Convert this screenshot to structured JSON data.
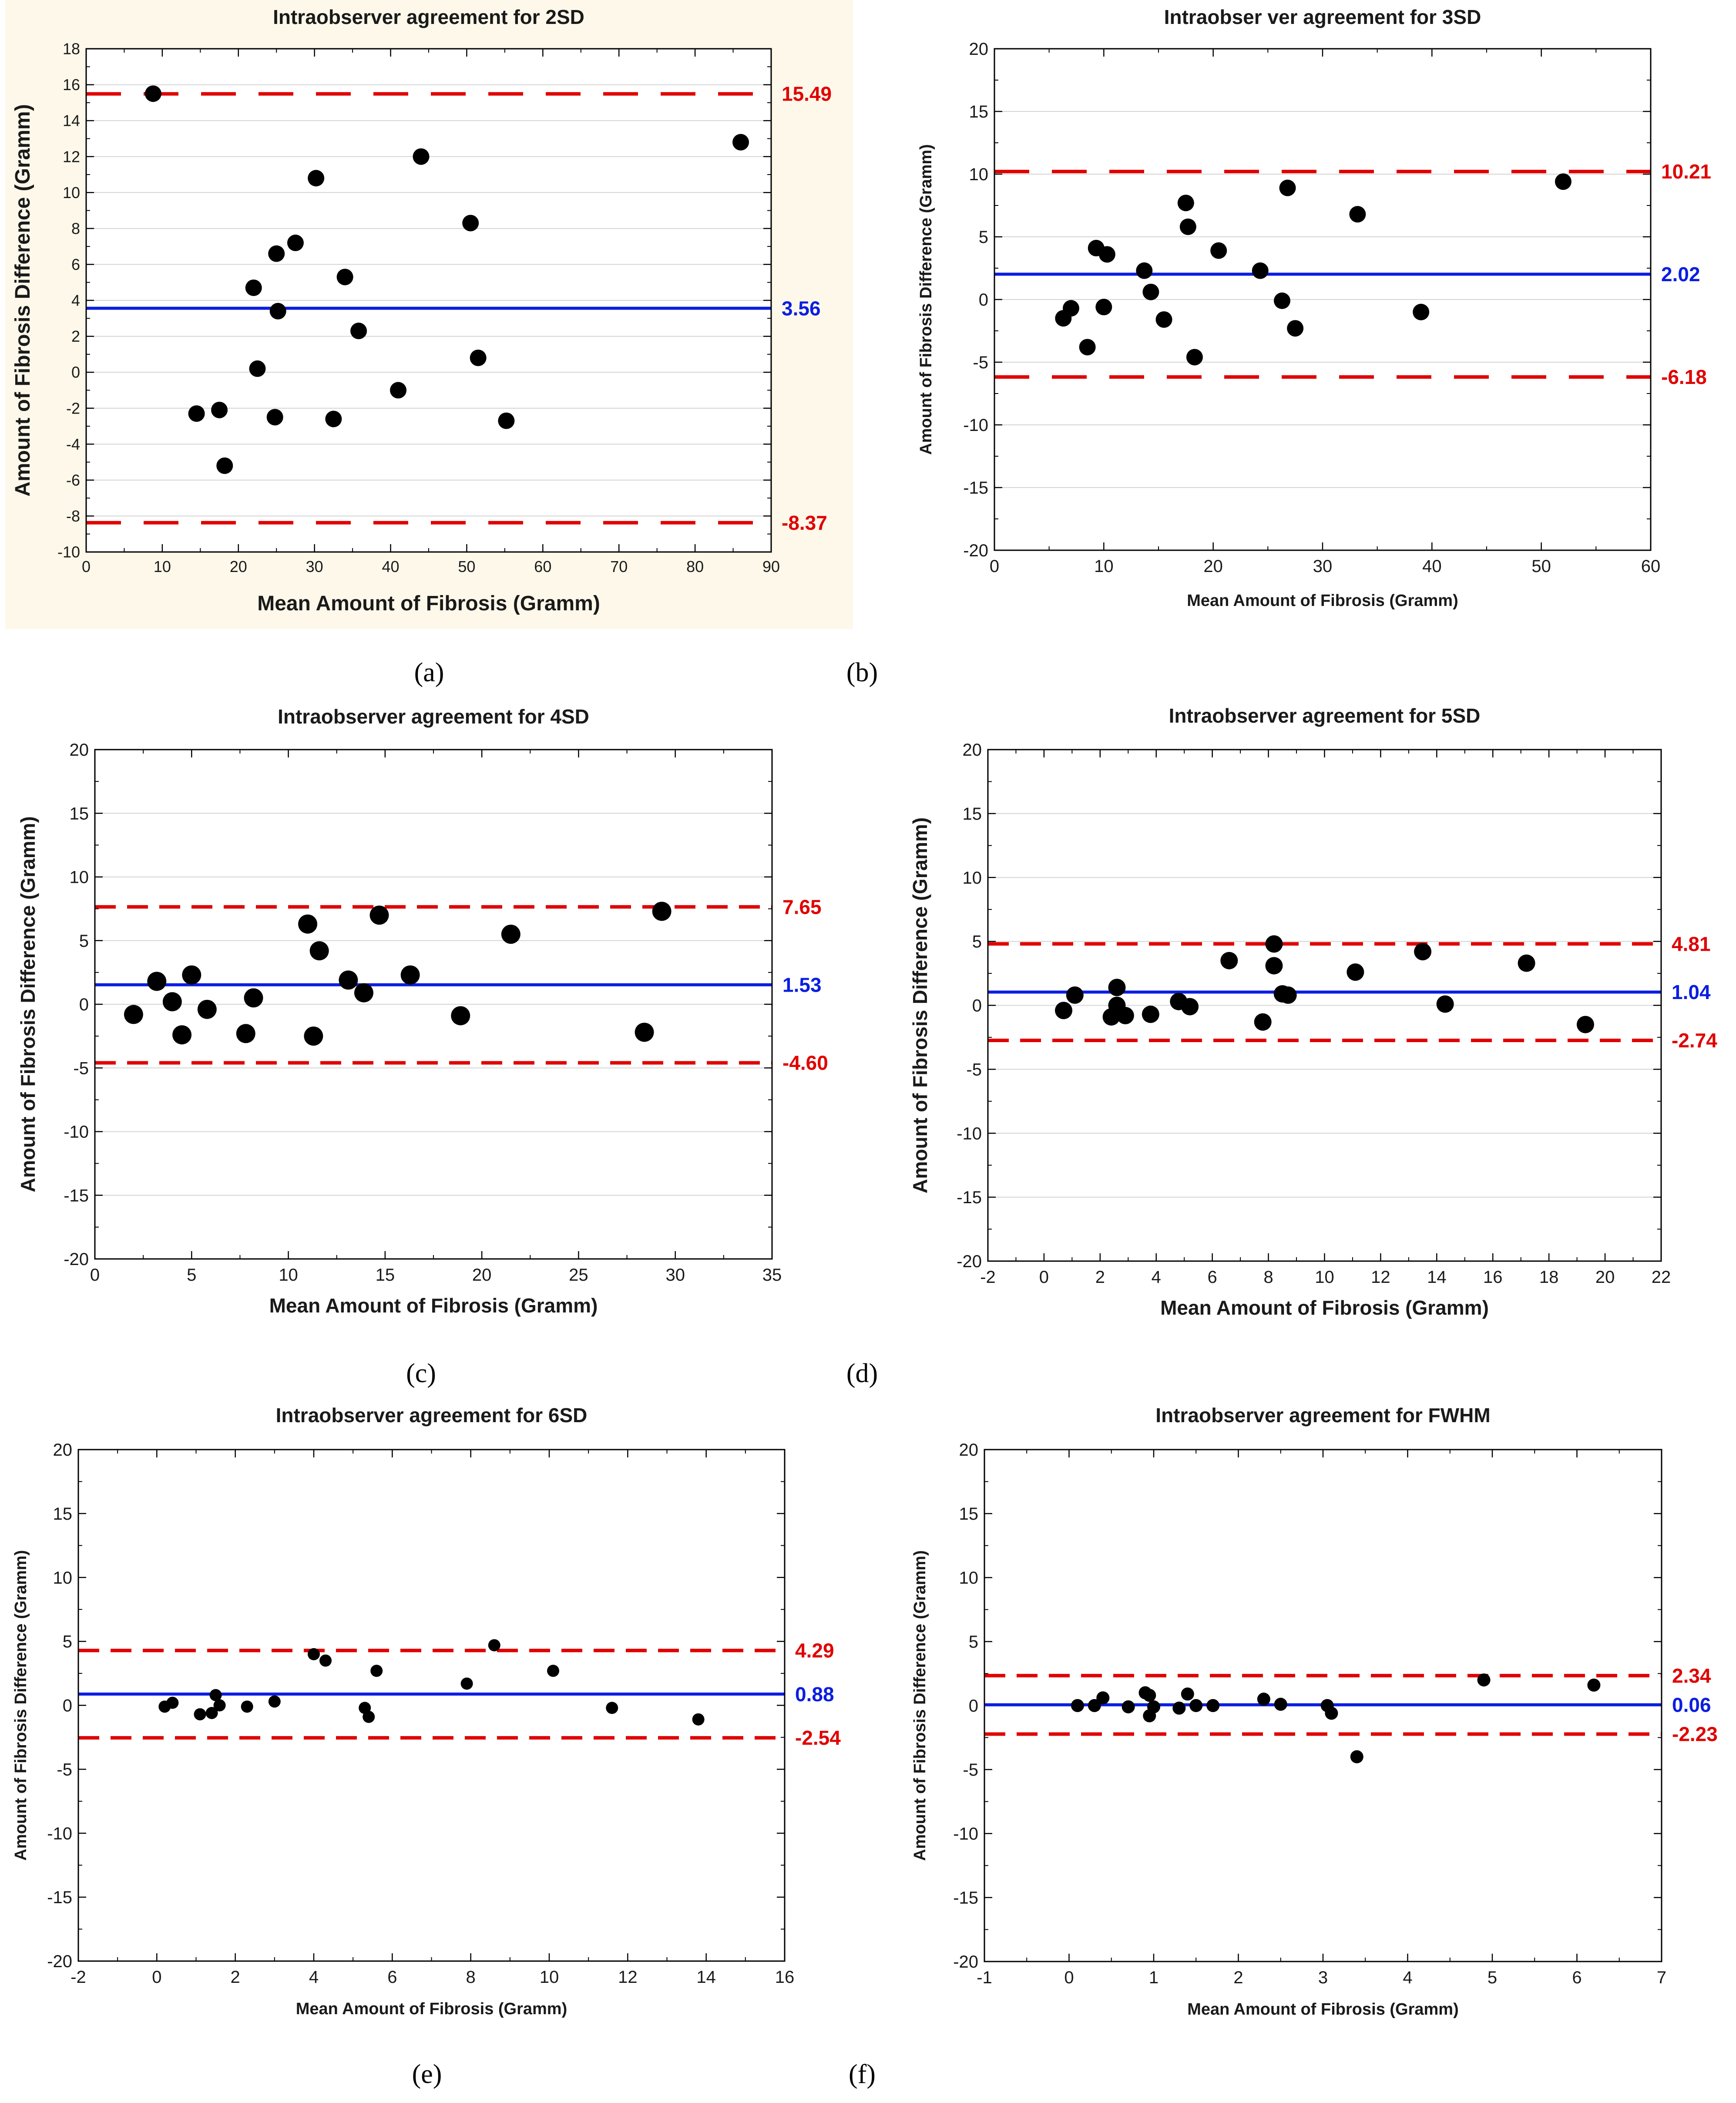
{
  "figure": {
    "panel_background": "#fdf8ea",
    "mean_line_color": "#0a1ee0",
    "limit_line_color": "#e00000",
    "point_color": "#000000"
  },
  "chart_data": [
    {
      "type": "scatter",
      "caption": "(a)",
      "title": "Intraobserver agreement for 2SD",
      "xlabel": "Mean Amount of Fibrosis (Gramm)",
      "ylabel": "Amount of Fibrosis Difference (Gramm)",
      "xlim": [
        0,
        90
      ],
      "xticks": [
        0,
        10,
        20,
        30,
        40,
        50,
        60,
        70,
        80,
        90
      ],
      "ylim": [
        -10,
        18
      ],
      "yticks": [
        -10,
        -8,
        -6,
        -4,
        -2,
        0,
        2,
        4,
        6,
        8,
        10,
        12,
        14,
        16,
        18
      ],
      "grid": true,
      "mean": 3.56,
      "mean_label": "3.56",
      "upper": 15.49,
      "upper_label": "15.49",
      "lower": -8.37,
      "lower_label": "-8.37",
      "dash_style": "long",
      "points": [
        [
          8.8,
          15.5
        ],
        [
          14.5,
          -2.3
        ],
        [
          17.5,
          -2.1
        ],
        [
          18.2,
          -5.2
        ],
        [
          22.0,
          4.7
        ],
        [
          22.5,
          0.2
        ],
        [
          24.8,
          -2.5
        ],
        [
          25.0,
          6.6
        ],
        [
          25.2,
          3.4
        ],
        [
          27.5,
          7.2
        ],
        [
          30.2,
          10.8
        ],
        [
          32.5,
          -2.6
        ],
        [
          34.0,
          5.3
        ],
        [
          35.8,
          2.3
        ],
        [
          41.0,
          -1.0
        ],
        [
          44.0,
          12.0
        ],
        [
          50.5,
          8.3
        ],
        [
          51.5,
          0.8
        ],
        [
          55.2,
          -2.7
        ],
        [
          86.0,
          12.8
        ]
      ]
    },
    {
      "type": "scatter",
      "caption": "(b)",
      "title": "Intraobser ver agreement for 3SD",
      "xlabel": "Mean Amount of Fibrosis (Gramm)",
      "ylabel": "Amount of Fibrosis Difference (Gramm)",
      "xlim": [
        0,
        60
      ],
      "xticks": [
        0,
        10,
        20,
        30,
        40,
        50,
        60
      ],
      "ylim": [
        -20,
        20
      ],
      "yticks": [
        -20,
        -15,
        -10,
        -5,
        0,
        5,
        10,
        15,
        20
      ],
      "grid": true,
      "mean": 2.02,
      "mean_label": "2.02",
      "upper": 10.21,
      "upper_label": "10.21",
      "lower": -6.18,
      "lower_label": "-6.18",
      "dash_style": "long",
      "points": [
        [
          6.3,
          -1.5
        ],
        [
          7.0,
          -0.7
        ],
        [
          8.5,
          -3.8
        ],
        [
          9.3,
          4.1
        ],
        [
          10.0,
          -0.6
        ],
        [
          10.3,
          3.6
        ],
        [
          13.7,
          2.3
        ],
        [
          14.3,
          0.6
        ],
        [
          15.5,
          -1.6
        ],
        [
          17.5,
          7.7
        ],
        [
          17.7,
          5.8
        ],
        [
          18.3,
          -4.6
        ],
        [
          20.5,
          3.9
        ],
        [
          24.3,
          2.3
        ],
        [
          26.3,
          -0.1
        ],
        [
          26.8,
          8.9
        ],
        [
          27.5,
          -2.3
        ],
        [
          33.2,
          6.8
        ],
        [
          39.0,
          -1.0
        ],
        [
          52.0,
          9.4
        ]
      ]
    },
    {
      "type": "scatter",
      "caption": "(c)",
      "title": "Intraobserver agreement for 4SD",
      "xlabel": "Mean Amount of Fibrosis (Gramm)",
      "ylabel": "Amount of Fibrosis Difference (Gramm)",
      "xlim": [
        0,
        35
      ],
      "xticks": [
        0,
        5,
        10,
        15,
        20,
        25,
        30,
        35
      ],
      "ylim": [
        -20,
        20
      ],
      "yticks": [
        -20,
        -15,
        -10,
        -5,
        0,
        5,
        10,
        15,
        20
      ],
      "grid": true,
      "mean": 1.53,
      "mean_label": "1.53",
      "upper": 7.65,
      "upper_label": "7.65",
      "lower": -4.6,
      "lower_label": "-4.60",
      "dash_style": "medium",
      "points": [
        [
          2.0,
          -0.8
        ],
        [
          3.2,
          1.8
        ],
        [
          4.0,
          0.2
        ],
        [
          4.5,
          -2.4
        ],
        [
          5.0,
          2.3
        ],
        [
          5.8,
          -0.4
        ],
        [
          7.8,
          -2.3
        ],
        [
          8.2,
          0.5
        ],
        [
          11.0,
          6.3
        ],
        [
          11.3,
          -2.5
        ],
        [
          11.6,
          4.2
        ],
        [
          13.1,
          1.9
        ],
        [
          13.9,
          0.9
        ],
        [
          14.7,
          7.0
        ],
        [
          16.3,
          2.3
        ],
        [
          18.9,
          -0.9
        ],
        [
          21.5,
          5.5
        ],
        [
          28.4,
          -2.2
        ],
        [
          29.3,
          7.3
        ]
      ]
    },
    {
      "type": "scatter",
      "caption": "(d)",
      "title": "Intraobserver agreement for 5SD",
      "xlabel": "Mean Amount of Fibrosis (Gramm)",
      "ylabel": "Amount of Fibrosis Difference (Gramm)",
      "xlim": [
        -2,
        22
      ],
      "xticks": [
        -2,
        0,
        2,
        4,
        6,
        8,
        10,
        12,
        14,
        16,
        18,
        20,
        22
      ],
      "ylim": [
        -20,
        20
      ],
      "yticks": [
        -20,
        -15,
        -10,
        -5,
        0,
        5,
        10,
        15,
        20
      ],
      "grid": true,
      "mean": 1.04,
      "mean_label": "1.04",
      "upper": 4.81,
      "upper_label": "4.81",
      "lower": -2.74,
      "lower_label": "-2.74",
      "dash_style": "medium",
      "points": [
        [
          0.7,
          -0.4
        ],
        [
          1.1,
          0.8
        ],
        [
          2.4,
          -0.9
        ],
        [
          2.6,
          1.4
        ],
        [
          2.6,
          0.0
        ],
        [
          2.9,
          -0.8
        ],
        [
          3.8,
          -0.7
        ],
        [
          4.8,
          0.3
        ],
        [
          5.2,
          -0.1
        ],
        [
          6.6,
          3.5
        ],
        [
          7.8,
          -1.3
        ],
        [
          8.2,
          4.8
        ],
        [
          8.2,
          3.1
        ],
        [
          8.5,
          0.9
        ],
        [
          8.7,
          0.8
        ],
        [
          11.1,
          2.6
        ],
        [
          13.5,
          4.2
        ],
        [
          14.3,
          0.1
        ],
        [
          17.2,
          3.3
        ],
        [
          19.3,
          -1.5
        ]
      ]
    },
    {
      "type": "scatter",
      "caption": "(e)",
      "title": "Intraobserver agreement for 6SD",
      "xlabel": "Mean Amount of Fibrosis (Gramm)",
      "ylabel": "Amount of Fibrosis Difference (Gramm)",
      "xlim": [
        -2,
        16
      ],
      "xticks": [
        -2,
        0,
        2,
        4,
        6,
        8,
        10,
        12,
        14,
        16
      ],
      "ylim": [
        -20,
        20
      ],
      "yticks": [
        -20,
        -15,
        -10,
        -5,
        0,
        5,
        10,
        15,
        20
      ],
      "grid": false,
      "mean": 0.88,
      "mean_label": "0.88",
      "upper": 4.29,
      "upper_label": "4.29",
      "lower": -2.54,
      "lower_label": "-2.54",
      "dash_style": "medium",
      "points": [
        [
          0.2,
          -0.1
        ],
        [
          0.4,
          0.2
        ],
        [
          1.1,
          -0.7
        ],
        [
          1.4,
          -0.6
        ],
        [
          1.5,
          0.8
        ],
        [
          1.6,
          0.0
        ],
        [
          2.3,
          -0.1
        ],
        [
          3.0,
          0.3
        ],
        [
          4.0,
          4.0
        ],
        [
          4.3,
          3.5
        ],
        [
          5.3,
          -0.2
        ],
        [
          5.4,
          -0.9
        ],
        [
          5.6,
          2.7
        ],
        [
          7.9,
          1.7
        ],
        [
          8.6,
          4.7
        ],
        [
          10.1,
          2.7
        ],
        [
          11.6,
          -0.2
        ],
        [
          13.8,
          -1.1
        ]
      ]
    },
    {
      "type": "scatter",
      "caption": "(f)",
      "title": "Intraobserver agreement for FWHM",
      "xlabel": "Mean Amount of Fibrosis (Gramm)",
      "ylabel": "Amount of Fibrosis Difference (Gramm)",
      "xlim": [
        -1,
        7
      ],
      "xticks": [
        -1,
        0,
        1,
        2,
        3,
        4,
        5,
        6,
        7
      ],
      "ylim": [
        -20,
        20
      ],
      "yticks": [
        -20,
        -15,
        -10,
        -5,
        0,
        5,
        10,
        15,
        20
      ],
      "grid": false,
      "mean": 0.06,
      "mean_label": "0.06",
      "upper": 2.34,
      "upper_label": "2.34",
      "lower": -2.23,
      "lower_label": "-2.23",
      "dash_style": "medium",
      "points": [
        [
          0.1,
          0.0
        ],
        [
          0.3,
          0.0
        ],
        [
          0.4,
          0.6
        ],
        [
          0.7,
          -0.1
        ],
        [
          0.9,
          1.0
        ],
        [
          0.95,
          0.8
        ],
        [
          0.95,
          -0.8
        ],
        [
          1.0,
          -0.1
        ],
        [
          1.3,
          -0.2
        ],
        [
          1.4,
          0.9
        ],
        [
          1.5,
          0.0
        ],
        [
          1.7,
          0.0
        ],
        [
          2.3,
          0.5
        ],
        [
          2.5,
          0.1
        ],
        [
          3.05,
          0.0
        ],
        [
          3.1,
          -0.6
        ],
        [
          3.4,
          -4.0
        ],
        [
          4.9,
          2.0
        ],
        [
          6.2,
          1.6
        ]
      ]
    }
  ]
}
